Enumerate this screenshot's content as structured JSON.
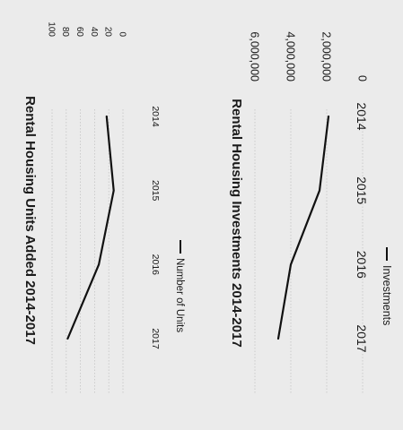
{
  "chart_data": [
    {
      "type": "line",
      "title": "Rental Housing Units Added 2014-2017",
      "categories": [
        "2014",
        "2015",
        "2016",
        "2017"
      ],
      "y_ticks": [
        "100",
        "80",
        "60",
        "40",
        "20",
        "0"
      ],
      "ylim": [
        0,
        100
      ],
      "series": [
        {
          "name": "Number of Units",
          "values": [
            23,
            13,
            34,
            78
          ]
        }
      ],
      "legend": "bottom",
      "grid": true
    },
    {
      "type": "line",
      "title": "Rental Housing Investments 2014-2017",
      "categories": [
        "2014",
        "2015",
        "2016",
        "2017"
      ],
      "y_ticks": [
        "6,000,000",
        "4,000,000",
        "2,000,000",
        "0"
      ],
      "ylim": [
        0,
        6000000
      ],
      "series": [
        {
          "name": "Investments",
          "values": [
            1900000,
            2400000,
            4000000,
            4700000
          ]
        }
      ],
      "legend": "bottom",
      "grid": true
    }
  ]
}
